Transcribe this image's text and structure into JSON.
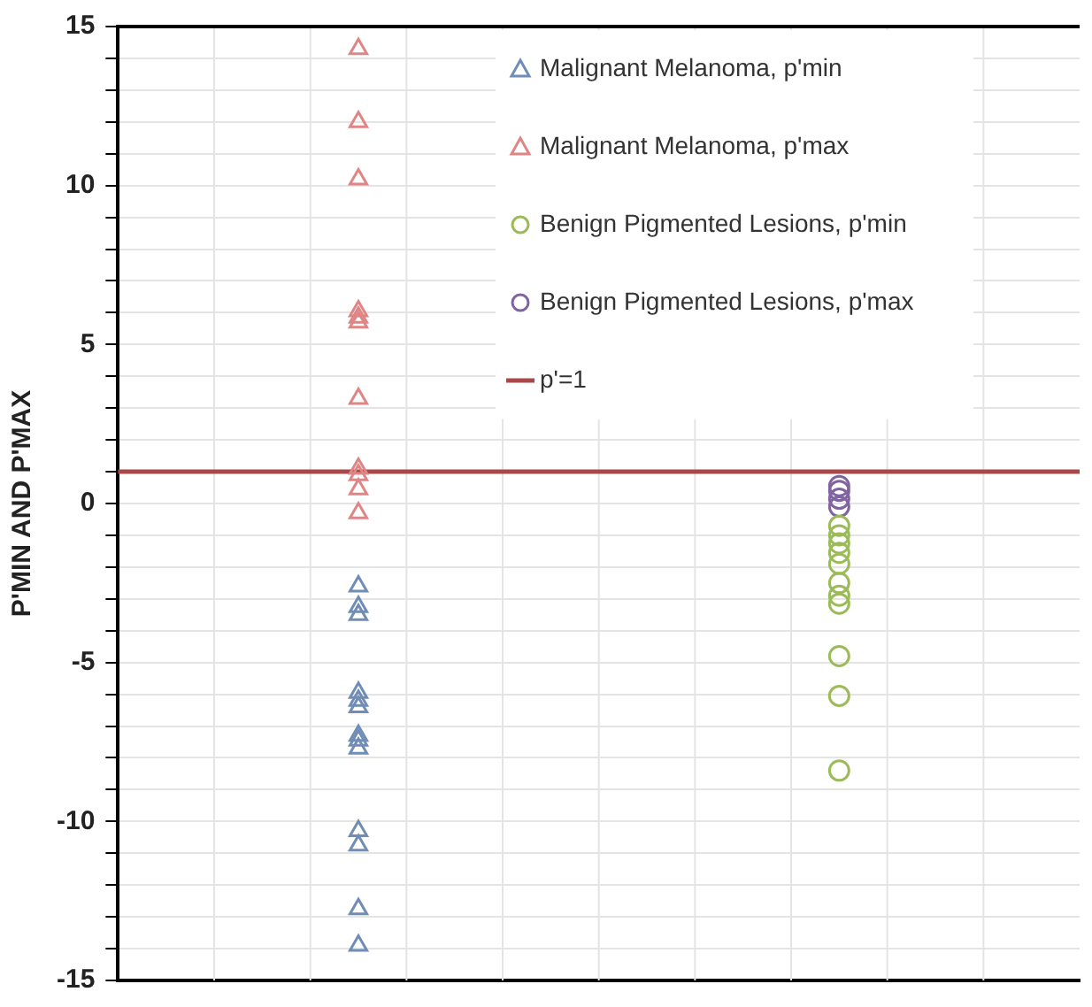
{
  "chart_data": {
    "type": "scatter",
    "ylabel": "P'MIN AND P'MAX",
    "categories": [
      null,
      null
    ],
    "ylim": [
      -15,
      15
    ],
    "yticks": [
      -15,
      {
        "value": -14,
        "label": null
      },
      {
        "value": -13,
        "label": null
      },
      {
        "value": -12,
        "label": null
      },
      {
        "value": -11,
        "label": null
      },
      -10,
      {
        "value": -9,
        "label": null
      },
      {
        "value": -8,
        "label": null
      },
      {
        "value": -7,
        "label": null
      },
      {
        "value": -6,
        "label": null
      },
      -5,
      {
        "value": -4,
        "label": null
      },
      {
        "value": -3,
        "label": null
      },
      {
        "value": -2,
        "label": null
      },
      {
        "value": -1,
        "label": null
      },
      0,
      {
        "value": 1,
        "label": null
      },
      {
        "value": 2,
        "label": null
      },
      {
        "value": 3,
        "label": null
      },
      {
        "value": 4,
        "label": null
      },
      5,
      {
        "value": 6,
        "label": null
      },
      {
        "value": 7,
        "label": null
      },
      {
        "value": 8,
        "label": null
      },
      {
        "value": 9,
        "label": null
      },
      10,
      {
        "value": 11,
        "label": null
      },
      {
        "value": 12,
        "label": null
      },
      {
        "value": 13,
        "label": null
      },
      {
        "value": 14,
        "label": null
      },
      15
    ],
    "grid": true,
    "legend": "top right",
    "tick_labels": "y",
    "series": [
      {
        "name": "Malignant Melanoma, p'min",
        "color": "#6f8db5",
        "marker": "triangle",
        "values": [
          -2.6,
          null
        ]
      },
      {
        "color": "#6f8db5",
        "marker": "triangle",
        "values": [
          -3.25,
          null
        ]
      },
      {
        "color": "#6f8db5",
        "marker": "triangle",
        "values": [
          -3.5,
          null
        ]
      },
      {
        "color": "#6f8db5",
        "marker": "triangle",
        "values": [
          -5.95,
          null
        ]
      },
      {
        "color": "#6f8db5",
        "marker": "triangle",
        "values": [
          -6.2,
          null
        ]
      },
      {
        "color": "#6f8db5",
        "marker": "triangle",
        "values": [
          -6.4,
          null
        ]
      },
      {
        "color": "#6f8db5",
        "marker": "triangle",
        "values": [
          -7.3,
          null
        ]
      },
      {
        "color": "#6f8db5",
        "marker": "triangle",
        "values": [
          -7.45,
          null
        ]
      },
      {
        "color": "#6f8db5",
        "marker": "triangle",
        "values": [
          -7.7,
          null
        ]
      },
      {
        "color": "#6f8db5",
        "marker": "triangle",
        "values": [
          -10.3,
          null
        ]
      },
      {
        "color": "#6f8db5",
        "marker": "triangle",
        "values": [
          -10.75,
          null
        ]
      },
      {
        "color": "#6f8db5",
        "marker": "triangle",
        "values": [
          -12.75,
          null
        ]
      },
      {
        "color": "#6f8db5",
        "marker": "triangle",
        "values": [
          -13.9,
          null
        ]
      },
      {
        "name": "Malignant Melanoma, p'max",
        "color": "#e08585",
        "marker": "triangle",
        "values": [
          14.3,
          null
        ]
      },
      {
        "color": "#e08585",
        "marker": "triangle",
        "values": [
          12,
          null
        ]
      },
      {
        "color": "#e08585",
        "marker": "triangle",
        "values": [
          10.2,
          null
        ]
      },
      {
        "color": "#e08585",
        "marker": "triangle",
        "values": [
          6.05,
          null
        ]
      },
      {
        "color": "#e08585",
        "marker": "triangle",
        "values": [
          5.85,
          null
        ]
      },
      {
        "color": "#e08585",
        "marker": "triangle",
        "values": [
          5.7,
          null
        ]
      },
      {
        "color": "#e08585",
        "marker": "triangle",
        "values": [
          3.3,
          null
        ]
      },
      {
        "color": "#e08585",
        "marker": "triangle",
        "values": [
          1.1,
          null
        ]
      },
      {
        "color": "#e08585",
        "marker": "triangle",
        "values": [
          0.9,
          null
        ]
      },
      {
        "color": "#e08585",
        "marker": "triangle",
        "values": [
          0.45,
          null
        ]
      },
      {
        "color": "#e08585",
        "marker": "triangle",
        "values": [
          -0.3,
          null
        ]
      },
      {
        "name": "Benign Pigmented Lesions, p'min",
        "color": "#9bbb59",
        "marker": "circle",
        "values": [
          null,
          -0.7
        ]
      },
      {
        "color": "#9bbb59",
        "marker": "circle",
        "values": [
          null,
          -1
        ]
      },
      {
        "color": "#9bbb59",
        "marker": "circle",
        "values": [
          null,
          -1.25
        ]
      },
      {
        "color": "#9bbb59",
        "marker": "circle",
        "values": [
          null,
          -1.55
        ]
      },
      {
        "color": "#9bbb59",
        "marker": "circle",
        "values": [
          null,
          -1.9
        ]
      },
      {
        "color": "#9bbb59",
        "marker": "circle",
        "values": [
          null,
          -2.5
        ]
      },
      {
        "color": "#9bbb59",
        "marker": "circle",
        "values": [
          null,
          -2.9
        ]
      },
      {
        "color": "#9bbb59",
        "marker": "circle",
        "values": [
          null,
          -3.15
        ]
      },
      {
        "color": "#9bbb59",
        "marker": "circle",
        "values": [
          null,
          -4.8
        ]
      },
      {
        "color": "#9bbb59",
        "marker": "circle",
        "values": [
          null,
          -6.05
        ]
      },
      {
        "color": "#9bbb59",
        "marker": "circle",
        "values": [
          null,
          -8.4
        ]
      },
      {
        "name": "Benign Pigmented Lesions, p'max",
        "color": "#8064a2",
        "marker": "circle",
        "values": [
          null,
          0.55
        ]
      },
      {
        "color": "#8064a2",
        "marker": "circle",
        "values": [
          null,
          0.4
        ]
      },
      {
        "color": "#8064a2",
        "marker": "circle",
        "values": [
          null,
          0.15
        ]
      },
      {
        "color": "#8064a2",
        "marker": "circle",
        "values": [
          null,
          -0.1
        ]
      }
    ],
    "ref_lines": [
      {
        "axis": "y",
        "value": 1,
        "label": "p'=1",
        "color": "#a84848"
      }
    ]
  }
}
